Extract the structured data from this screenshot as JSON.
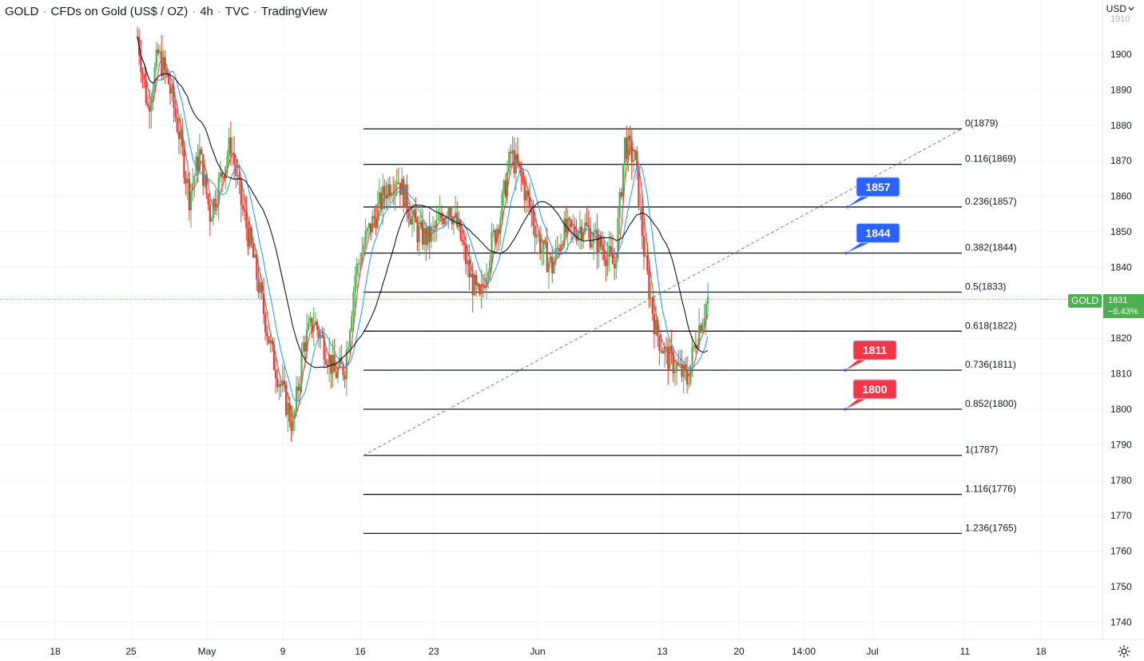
{
  "header": {
    "symbol": "GOLD",
    "description": "CFDs on Gold (US$ / OZ)",
    "interval": "4h",
    "exchange": "TVC",
    "source": "TradingView"
  },
  "currency_button": {
    "label": "USD",
    "icon": "chevron-down-icon"
  },
  "price_axis": {
    "top_partial_label": "1910",
    "labels": [
      "1900",
      "1890",
      "1880",
      "1870",
      "1860",
      "1850",
      "1840",
      "1830",
      "1820",
      "1810",
      "1800",
      "1790",
      "1780",
      "1770",
      "1760",
      "1750",
      "1740"
    ]
  },
  "time_axis": {
    "labels": [
      "18",
      "25",
      "May",
      "9",
      "16",
      "23",
      "Jun",
      "13",
      "20",
      "14:00",
      "Jul",
      "11",
      "18"
    ]
  },
  "last_price": {
    "symbol_tag": "GOLD",
    "price": "1831",
    "change": "−6.43%"
  },
  "colors": {
    "up": "#26a69a",
    "candle_up": "#4caf50",
    "candle_down": "#e53935",
    "blue_label": "#2962ff",
    "red_label": "#f23645",
    "fib_line": "#131722",
    "ma_fast": "#e53935",
    "ma_mid": "#2196f3",
    "ma_slow": "#000000",
    "price_line": "#4caf50"
  },
  "fibonacci": [
    {
      "label": "0(1879)",
      "price": 1879
    },
    {
      "label": "0.116(1869)",
      "price": 1869
    },
    {
      "label": "0.236(1857)",
      "price": 1857
    },
    {
      "label": "0.382(1844)",
      "price": 1844
    },
    {
      "label": "0.5(1833)",
      "price": 1833
    },
    {
      "label": "0.618(1822)",
      "price": 1822
    },
    {
      "label": "0.736(1811)",
      "price": 1811
    },
    {
      "label": "0.852(1800)",
      "price": 1800
    },
    {
      "label": "1(1787)",
      "price": 1787
    },
    {
      "label": "1.116(1776)",
      "price": 1776
    },
    {
      "label": "1.236(1765)",
      "price": 1765
    }
  ],
  "callouts": [
    {
      "label": "1857",
      "color": "blue",
      "price": 1857
    },
    {
      "label": "1844",
      "color": "blue",
      "price": 1844
    },
    {
      "label": "1811",
      "color": "red",
      "price": 1811
    },
    {
      "label": "1800",
      "color": "red",
      "price": 1800
    }
  ],
  "chart_data": {
    "type": "candlestick",
    "symbol": "GOLD",
    "interval": "4h",
    "ylim": [
      1735,
      1912
    ],
    "last_price": 1831,
    "trendline": {
      "from": 1787,
      "to": 1879
    },
    "price_path": [
      [
        0,
        1905
      ],
      [
        6,
        1885
      ],
      [
        12,
        1900
      ],
      [
        18,
        1892
      ],
      [
        24,
        1878
      ],
      [
        30,
        1860
      ],
      [
        36,
        1872
      ],
      [
        42,
        1855
      ],
      [
        48,
        1865
      ],
      [
        54,
        1875
      ],
      [
        60,
        1858
      ],
      [
        66,
        1845
      ],
      [
        72,
        1830
      ],
      [
        78,
        1815
      ],
      [
        84,
        1805
      ],
      [
        90,
        1795
      ],
      [
        96,
        1818
      ],
      [
        102,
        1825
      ],
      [
        108,
        1818
      ],
      [
        114,
        1810
      ],
      [
        120,
        1812
      ],
      [
        126,
        1838
      ],
      [
        132,
        1848
      ],
      [
        138,
        1855
      ],
      [
        144,
        1862
      ],
      [
        150,
        1866
      ],
      [
        156,
        1858
      ],
      [
        162,
        1850
      ],
      [
        168,
        1848
      ],
      [
        174,
        1852
      ],
      [
        180,
        1858
      ],
      [
        186,
        1850
      ],
      [
        192,
        1838
      ],
      [
        198,
        1830
      ],
      [
        204,
        1845
      ],
      [
        210,
        1855
      ],
      [
        216,
        1872
      ],
      [
        222,
        1865
      ],
      [
        228,
        1855
      ],
      [
        234,
        1845
      ],
      [
        240,
        1840
      ],
      [
        246,
        1850
      ],
      [
        252,
        1850
      ],
      [
        258,
        1852
      ],
      [
        264,
        1848
      ],
      [
        270,
        1845
      ],
      [
        276,
        1840
      ],
      [
        282,
        1875
      ],
      [
        288,
        1870
      ],
      [
        294,
        1840
      ],
      [
        300,
        1822
      ],
      [
        306,
        1815
      ],
      [
        312,
        1812
      ],
      [
        318,
        1808
      ],
      [
        324,
        1822
      ],
      [
        330,
        1831
      ]
    ]
  }
}
